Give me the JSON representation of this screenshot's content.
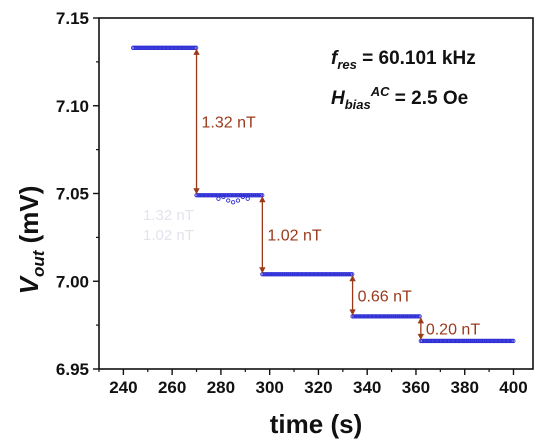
{
  "chart_data": {
    "type": "scatter",
    "xlabel": "time (s)",
    "ylabel_main": "V",
    "ylabel_sub": "out",
    "ylabel_unit": " (mV)",
    "xlim": [
      230,
      408
    ],
    "ylim": [
      6.95,
      7.15
    ],
    "x_ticks": [
      240,
      260,
      280,
      300,
      320,
      340,
      360,
      380,
      400
    ],
    "y_ticks": [
      6.95,
      7.0,
      7.05,
      7.1,
      7.15
    ],
    "y_tick_labels": [
      "6.95",
      "7.00",
      "7.05",
      "7.10",
      "7.15"
    ],
    "series_color": "#2f2fd6",
    "arrow_color": "#9a3a1a",
    "levels": [
      {
        "x_start": 244,
        "x_end": 270,
        "y": 7.133
      },
      {
        "x_start": 270,
        "x_end": 297,
        "y": 7.049
      },
      {
        "x_start": 297,
        "x_end": 334,
        "y": 7.004
      },
      {
        "x_start": 334,
        "x_end": 362,
        "y": 6.98
      },
      {
        "x_start": 362,
        "x_end": 400,
        "y": 6.966
      }
    ],
    "noise_points": [
      {
        "x": 279,
        "y": 7.047
      },
      {
        "x": 281,
        "y": 7.048
      },
      {
        "x": 283,
        "y": 7.046
      },
      {
        "x": 285,
        "y": 7.045
      },
      {
        "x": 287,
        "y": 7.046
      },
      {
        "x": 289,
        "y": 7.048
      },
      {
        "x": 291,
        "y": 7.047
      }
    ],
    "steps": [
      {
        "x": 270,
        "y_from": 7.133,
        "y_to": 7.049,
        "label": "1.32 nT"
      },
      {
        "x": 297,
        "y_from": 7.049,
        "y_to": 7.004,
        "label": "1.02 nT"
      },
      {
        "x": 334,
        "y_from": 7.004,
        "y_to": 6.98,
        "label": "0.66 nT"
      },
      {
        "x": 362,
        "y_from": 6.98,
        "y_to": 6.966,
        "label": "0.20 nT"
      }
    ],
    "info_line1": {
      "base": "f",
      "sub": "res",
      "rest": " = 60.101 kHz"
    },
    "info_line2": {
      "base": "H",
      "sub": "bias",
      "sup": "AC",
      "rest": " = 2.5 Oe"
    },
    "ghost_labels": [
      "1.32 nT",
      "1.02 nT"
    ]
  }
}
